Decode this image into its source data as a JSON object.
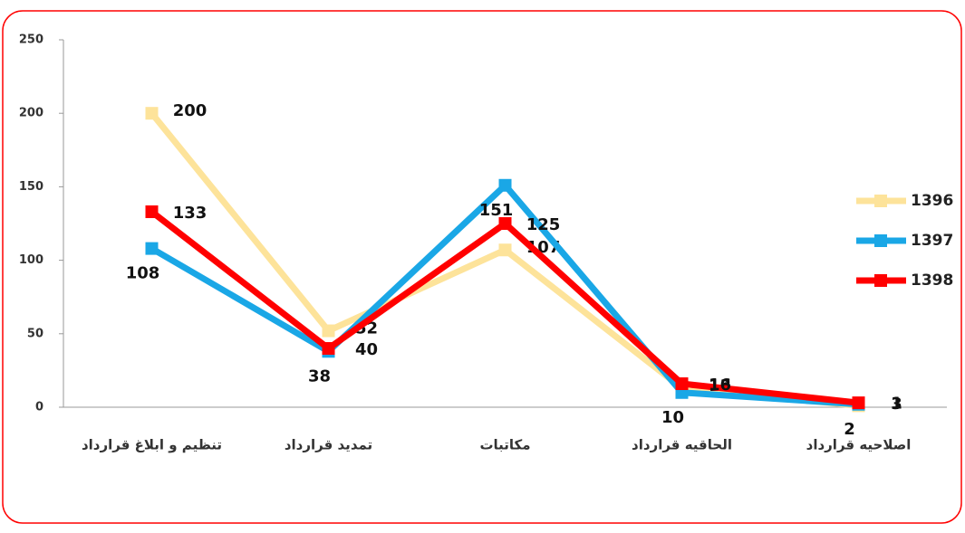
{
  "chart_data": {
    "type": "line",
    "categories": [
      "تنظیم و ابلاغ قرارداد",
      "تمدید قرارداد",
      "مکاتبات",
      "الحاقیه قرارداد",
      "اصلاحیه قرارداد"
    ],
    "series": [
      {
        "name": "1396",
        "color": "#fde39a",
        "values": [
          200,
          52,
          107,
          13,
          1
        ]
      },
      {
        "name": "1397",
        "color": "#1aa7e6",
        "values": [
          108,
          38,
          151,
          10,
          2
        ]
      },
      {
        "name": "1398",
        "color": "#ff0000",
        "values": [
          133,
          40,
          125,
          16,
          3
        ]
      }
    ],
    "ylim": [
      0,
      250
    ],
    "yticks": [
      0,
      50,
      100,
      150,
      200,
      250
    ],
    "legend": "right"
  }
}
